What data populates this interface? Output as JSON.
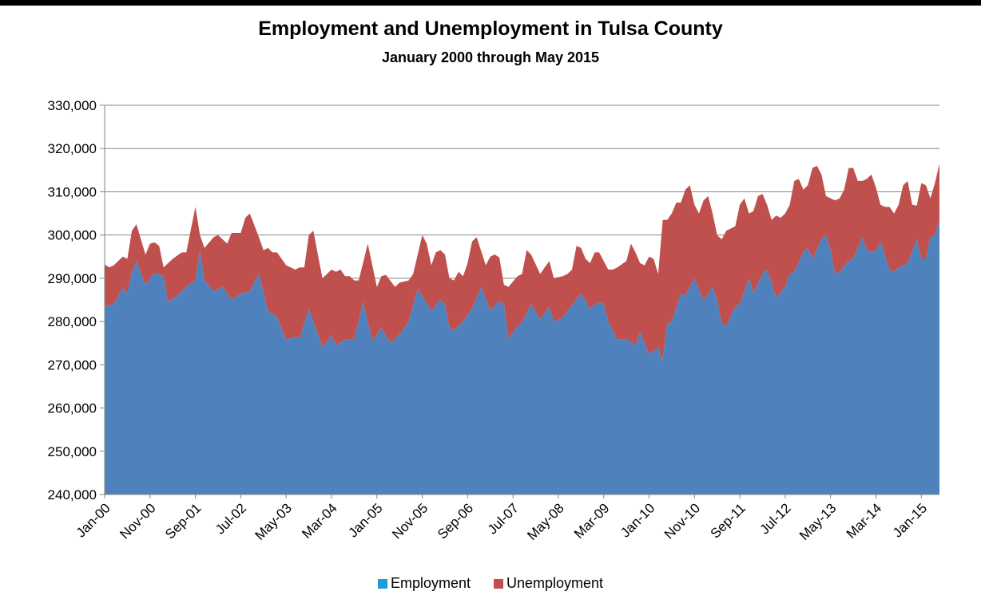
{
  "chart_data": {
    "type": "area",
    "stacked": true,
    "title": "Employment and Unemployment in Tulsa County",
    "subtitle": "January 2000 through May 2015",
    "ylim": [
      240000,
      330000
    ],
    "y_ticks": [
      "240,000",
      "250,000",
      "260,000",
      "270,000",
      "280,000",
      "290,000",
      "300,000",
      "310,000",
      "320,000",
      "330,000"
    ],
    "x_tick_labels": [
      "Jan-00",
      "Nov-00",
      "Sep-01",
      "Jul-02",
      "May-03",
      "Mar-04",
      "Jan-05",
      "Nov-05",
      "Sep-06",
      "Jul-07",
      "May-08",
      "Mar-09",
      "Jan-10",
      "Nov-10",
      "Sep-11",
      "Jul-12",
      "May-13",
      "Mar-14",
      "Jan-15"
    ],
    "x_start": "Jan-00",
    "x_end": "May-15",
    "grid": true,
    "legend_position": "bottom",
    "series": [
      {
        "name": "Employment",
        "color": "#4f81bd",
        "legend_color": "#1f9bd7",
        "anchors": [
          [
            "Jan-00",
            283500
          ],
          [
            "Mar-00",
            284000
          ],
          [
            "May-00",
            287800
          ],
          [
            "Jun-00",
            286500
          ],
          [
            "Jul-00",
            291500
          ],
          [
            "Aug-00",
            294000
          ],
          [
            "Oct-00",
            288500
          ],
          [
            "Dec-00",
            291300
          ],
          [
            "Feb-01",
            290500
          ],
          [
            "Mar-01",
            284500
          ],
          [
            "May-01",
            286000
          ],
          [
            "Jul-01",
            288000
          ],
          [
            "Sep-01",
            289500
          ],
          [
            "Oct-01",
            296500
          ],
          [
            "Nov-01",
            289500
          ],
          [
            "Jan-02",
            287000
          ],
          [
            "Mar-02",
            288000
          ],
          [
            "May-02",
            285000
          ],
          [
            "Jul-02",
            286500
          ],
          [
            "Sep-02",
            287000
          ],
          [
            "Nov-02",
            291000
          ],
          [
            "Jan-03",
            282500
          ],
          [
            "Mar-03",
            281000
          ],
          [
            "May-03",
            275800
          ],
          [
            "Jul-03",
            276500
          ],
          [
            "Aug-03",
            276000
          ],
          [
            "Oct-03",
            283000
          ],
          [
            "Jan-04",
            274000
          ],
          [
            "Mar-04",
            276800
          ],
          [
            "Apr-04",
            274500
          ],
          [
            "Jun-04",
            275800
          ],
          [
            "Aug-04",
            276000
          ],
          [
            "Oct-04",
            284500
          ],
          [
            "Dec-04",
            275500
          ],
          [
            "Feb-05",
            278500
          ],
          [
            "Apr-05",
            275000
          ],
          [
            "Jun-05",
            277000
          ],
          [
            "Aug-05",
            280000
          ],
          [
            "Oct-05",
            287500
          ],
          [
            "Jan-06",
            282500
          ],
          [
            "Mar-06",
            285000
          ],
          [
            "Apr-06",
            284000
          ],
          [
            "May-06",
            278500
          ],
          [
            "Jun-06",
            278000
          ],
          [
            "Aug-06",
            280000
          ],
          [
            "Oct-06",
            283000
          ],
          [
            "Dec-06",
            288000
          ],
          [
            "Feb-07",
            282500
          ],
          [
            "Apr-07",
            284800
          ],
          [
            "May-07",
            284000
          ],
          [
            "Jun-07",
            276000
          ],
          [
            "Aug-07",
            279000
          ],
          [
            "Sep-07",
            279800
          ],
          [
            "Nov-07",
            284000
          ],
          [
            "Jan-08",
            280500
          ],
          [
            "Mar-08",
            283500
          ],
          [
            "Apr-08",
            280000
          ],
          [
            "Jun-08",
            281000
          ],
          [
            "Aug-08",
            283800
          ],
          [
            "Oct-08",
            286500
          ],
          [
            "Dec-08",
            283000
          ],
          [
            "Feb-09",
            284500
          ],
          [
            "Mar-09",
            284000
          ],
          [
            "Apr-09",
            280000
          ],
          [
            "Jun-09",
            275800
          ],
          [
            "Aug-09",
            276000
          ],
          [
            "Oct-09",
            274500
          ],
          [
            "Nov-09",
            277500
          ],
          [
            "Jan-10",
            272500
          ],
          [
            "Mar-10",
            274000
          ],
          [
            "Apr-10",
            271000
          ],
          [
            "May-10",
            279500
          ],
          [
            "Jun-10",
            280000
          ],
          [
            "Aug-10",
            286500
          ],
          [
            "Sep-10",
            286000
          ],
          [
            "Nov-10",
            290000
          ],
          [
            "Jan-11",
            284800
          ],
          [
            "Mar-11",
            288000
          ],
          [
            "Apr-11",
            285000
          ],
          [
            "May-11",
            279500
          ],
          [
            "Jun-11",
            279000
          ],
          [
            "Aug-11",
            283500
          ],
          [
            "Sep-11",
            284000
          ],
          [
            "Nov-11",
            290000
          ],
          [
            "Dec-11",
            286500
          ],
          [
            "Feb-12",
            291000
          ],
          [
            "Mar-12",
            292000
          ],
          [
            "Apr-12",
            289000
          ],
          [
            "May-12",
            285500
          ],
          [
            "Jul-12",
            288000
          ],
          [
            "Aug-12",
            291000
          ],
          [
            "Sep-12",
            291500
          ],
          [
            "Nov-12",
            296000
          ],
          [
            "Dec-12",
            297000
          ],
          [
            "Jan-13",
            294500
          ],
          [
            "Mar-13",
            299000
          ],
          [
            "Apr-13",
            300000
          ],
          [
            "May-13",
            296500
          ],
          [
            "Jun-13",
            291000
          ],
          [
            "Jul-13",
            291500
          ],
          [
            "Sep-13",
            294000
          ],
          [
            "Oct-13",
            294500
          ],
          [
            "Dec-13",
            299500
          ],
          [
            "Jan-14",
            296500
          ],
          [
            "Feb-14",
            296000
          ],
          [
            "Mar-14",
            296500
          ],
          [
            "Apr-14",
            298500
          ],
          [
            "Jun-14",
            292000
          ],
          [
            "Jul-14",
            291500
          ],
          [
            "Aug-14",
            292500
          ],
          [
            "Oct-14",
            293500
          ],
          [
            "Dec-14",
            299000
          ],
          [
            "Jan-15",
            294500
          ],
          [
            "Feb-15",
            294500
          ],
          [
            "Mar-15",
            299500
          ],
          [
            "Apr-15",
            300000
          ],
          [
            "May-15",
            303500
          ]
        ]
      },
      {
        "name": "Unemployment",
        "color": "#c0504d",
        "legend_color": "#c0504d",
        "anchors": [
          [
            "Jan-00",
            293200
          ],
          [
            "Feb-00",
            292500
          ],
          [
            "Mar-00",
            293000
          ],
          [
            "May-00",
            295000
          ],
          [
            "Jun-00",
            294500
          ],
          [
            "Jul-00",
            301000
          ],
          [
            "Aug-00",
            302500
          ],
          [
            "Oct-00",
            295500
          ],
          [
            "Nov-00",
            298000
          ],
          [
            "Dec-00",
            298300
          ],
          [
            "Jan-01",
            297500
          ],
          [
            "Feb-01",
            292500
          ],
          [
            "Apr-01",
            294500
          ],
          [
            "Jun-01",
            296000
          ],
          [
            "Jul-01",
            296000
          ],
          [
            "Sep-01",
            306500
          ],
          [
            "Oct-01",
            300000
          ],
          [
            "Nov-01",
            297000
          ],
          [
            "Jan-02",
            299500
          ],
          [
            "Feb-02",
            300000
          ],
          [
            "Apr-02",
            298000
          ],
          [
            "May-02",
            300500
          ],
          [
            "Jul-02",
            300500
          ],
          [
            "Aug-02",
            304000
          ],
          [
            "Sep-02",
            305000
          ],
          [
            "Nov-02",
            299500
          ],
          [
            "Dec-02",
            296500
          ],
          [
            "Jan-03",
            297000
          ],
          [
            "Feb-03",
            296000
          ],
          [
            "Mar-03",
            296000
          ],
          [
            "May-03",
            293000
          ],
          [
            "Jul-03",
            292000
          ],
          [
            "Aug-03",
            292500
          ],
          [
            "Sep-03",
            292500
          ],
          [
            "Oct-03",
            300000
          ],
          [
            "Nov-03",
            301000
          ],
          [
            "Jan-04",
            290000
          ],
          [
            "Mar-04",
            292000
          ],
          [
            "Apr-04",
            291500
          ],
          [
            "May-04",
            292000
          ],
          [
            "Jun-04",
            290500
          ],
          [
            "Jul-04",
            290500
          ],
          [
            "Aug-04",
            289500
          ],
          [
            "Sep-04",
            289500
          ],
          [
            "Nov-04",
            298000
          ],
          [
            "Jan-05",
            288000
          ],
          [
            "Feb-05",
            290500
          ],
          [
            "Mar-05",
            290800
          ],
          [
            "May-05",
            288000
          ],
          [
            "Jun-05",
            289000
          ],
          [
            "Aug-05",
            289500
          ],
          [
            "Sep-05",
            291000
          ],
          [
            "Nov-05",
            300000
          ],
          [
            "Dec-05",
            298000
          ],
          [
            "Jan-06",
            293000
          ],
          [
            "Feb-06",
            296000
          ],
          [
            "Mar-06",
            296500
          ],
          [
            "Apr-06",
            295500
          ],
          [
            "May-06",
            290000
          ],
          [
            "Jun-06",
            289500
          ],
          [
            "Jul-06",
            291500
          ],
          [
            "Aug-06",
            290500
          ],
          [
            "Sep-06",
            293500
          ],
          [
            "Oct-06",
            298500
          ],
          [
            "Nov-06",
            299500
          ],
          [
            "Jan-07",
            293000
          ],
          [
            "Feb-07",
            295000
          ],
          [
            "Mar-07",
            295500
          ],
          [
            "Apr-07",
            294800
          ],
          [
            "May-07",
            288500
          ],
          [
            "Jun-07",
            288000
          ],
          [
            "Aug-07",
            290500
          ],
          [
            "Sep-07",
            291000
          ],
          [
            "Oct-07",
            296500
          ],
          [
            "Nov-07",
            295500
          ],
          [
            "Jan-08",
            291000
          ],
          [
            "Mar-08",
            294000
          ],
          [
            "Apr-08",
            290000
          ],
          [
            "Jun-08",
            290500
          ],
          [
            "Jul-08",
            291000
          ],
          [
            "Aug-08",
            292000
          ],
          [
            "Sep-08",
            297500
          ],
          [
            "Oct-08",
            297000
          ],
          [
            "Nov-08",
            294500
          ],
          [
            "Dec-08",
            293500
          ],
          [
            "Jan-09",
            296000
          ],
          [
            "Feb-09",
            296000
          ],
          [
            "Apr-09",
            292000
          ],
          [
            "May-09",
            292000
          ],
          [
            "Jun-09",
            292500
          ],
          [
            "Aug-09",
            294000
          ],
          [
            "Sep-09",
            298000
          ],
          [
            "Oct-09",
            296000
          ],
          [
            "Nov-09",
            293500
          ],
          [
            "Dec-09",
            293000
          ],
          [
            "Jan-10",
            295000
          ],
          [
            "Feb-10",
            294500
          ],
          [
            "Mar-10",
            291000
          ],
          [
            "Apr-10",
            303500
          ],
          [
            "May-10",
            303500
          ],
          [
            "Jun-10",
            305000
          ],
          [
            "Jul-10",
            307500
          ],
          [
            "Aug-10",
            307500
          ],
          [
            "Sep-10",
            310500
          ],
          [
            "Oct-10",
            311500
          ],
          [
            "Nov-10",
            307000
          ],
          [
            "Dec-10",
            305000
          ],
          [
            "Jan-11",
            308000
          ],
          [
            "Feb-11",
            309000
          ],
          [
            "Mar-11",
            305000
          ],
          [
            "Apr-11",
            300000
          ],
          [
            "May-11",
            299000
          ],
          [
            "Jun-11",
            301000
          ],
          [
            "Aug-11",
            302000
          ],
          [
            "Sep-11",
            307000
          ],
          [
            "Oct-11",
            308500
          ],
          [
            "Nov-11",
            305000
          ],
          [
            "Dec-11",
            305500
          ],
          [
            "Jan-12",
            309000
          ],
          [
            "Feb-12",
            309500
          ],
          [
            "Mar-12",
            307000
          ],
          [
            "Apr-12",
            303500
          ],
          [
            "May-12",
            304500
          ],
          [
            "Jun-12",
            304000
          ],
          [
            "Jul-12",
            305000
          ],
          [
            "Aug-12",
            307000
          ],
          [
            "Sep-12",
            312500
          ],
          [
            "Oct-12",
            313000
          ],
          [
            "Nov-12",
            310500
          ],
          [
            "Dec-12",
            311500
          ],
          [
            "Jan-13",
            315500
          ],
          [
            "Feb-13",
            316000
          ],
          [
            "Mar-13",
            314000
          ],
          [
            "Apr-13",
            309000
          ],
          [
            "Jun-13",
            308000
          ],
          [
            "Jul-13",
            308500
          ],
          [
            "Aug-13",
            310500
          ],
          [
            "Sep-13",
            315500
          ],
          [
            "Oct-13",
            315500
          ],
          [
            "Nov-13",
            312500
          ],
          [
            "Dec-13",
            312500
          ],
          [
            "Jan-14",
            313000
          ],
          [
            "Feb-14",
            314000
          ],
          [
            "Mar-14",
            311000
          ],
          [
            "Apr-14",
            307000
          ],
          [
            "May-14",
            306500
          ],
          [
            "Jun-14",
            306500
          ],
          [
            "Jul-14",
            305000
          ],
          [
            "Aug-14",
            307000
          ],
          [
            "Sep-14",
            311500
          ],
          [
            "Oct-14",
            312500
          ],
          [
            "Nov-14",
            307000
          ],
          [
            "Dec-14",
            306800
          ],
          [
            "Jan-15",
            312000
          ],
          [
            "Feb-15",
            311500
          ],
          [
            "Mar-15",
            308500
          ],
          [
            "Apr-15",
            312000
          ],
          [
            "May-15",
            316500
          ]
        ]
      }
    ]
  }
}
